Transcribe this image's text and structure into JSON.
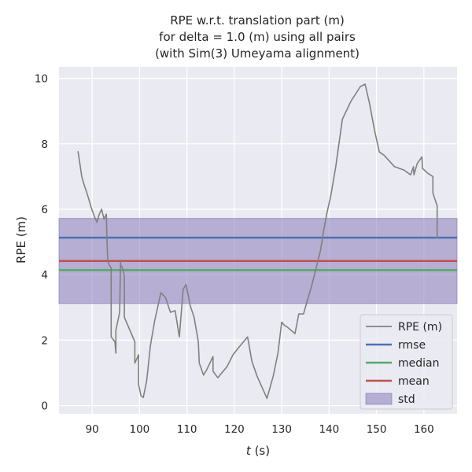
{
  "chart_data": {
    "type": "line",
    "title_lines": [
      "RPE w.r.t. translation part (m)",
      "for delta = 1.0 (m) using all pairs",
      "(with Sim(3) Umeyama alignment)"
    ],
    "xlabel_italic": "t",
    "xlabel_unit": " (s)",
    "ylabel": "RPE (m)",
    "xlim": [
      83,
      167
    ],
    "ylim": [
      -0.25,
      10.35
    ],
    "xticks": [
      90,
      100,
      110,
      120,
      130,
      140,
      150,
      160
    ],
    "xtick_labels": [
      "90",
      "100",
      "110",
      "120",
      "130",
      "140",
      "150",
      "160"
    ],
    "yticks": [
      0,
      2,
      4,
      6,
      8,
      10
    ],
    "ytick_labels": [
      "0",
      "2",
      "4",
      "6",
      "8",
      "10"
    ],
    "grid": true,
    "background": "#eaeaf2",
    "legend_position": "lower-right",
    "series": [
      {
        "name": "RPE (m)",
        "color": "#808080",
        "x": [
          87,
          87.3,
          87.8,
          88.3,
          89,
          89.8,
          90.4,
          91,
          91.5,
          92,
          92.5,
          93,
          93.1,
          93.3,
          94,
          94,
          94.8,
          95,
          95,
          95.8,
          96,
          96,
          96.4,
          96.8,
          96.8,
          99,
          99,
          99.8,
          99.8,
          100.3,
          100.8,
          101.5,
          102.3,
          103.2,
          104.5,
          105.5,
          106.5,
          107.5,
          108.4,
          109.2,
          109.8,
          110.7,
          110.7,
          111.5,
          112.4,
          112.6,
          113.5,
          114.2,
          115.5,
          115.5,
          116.5,
          118.5,
          119.7,
          120.5,
          122.8,
          123.7,
          124.8,
          126.9,
          128.2,
          129.2,
          130,
          130.6,
          131.2,
          132.8,
          133.6,
          134.6,
          134.8,
          135.3,
          136.2,
          137,
          137.6,
          138.2,
          138.8,
          139.5,
          140.4,
          141.4,
          142.8,
          144.6,
          146.6,
          147.6,
          148.5,
          149.6,
          150.6,
          151.6,
          153.8,
          155.8,
          157.2,
          157.8,
          157.9,
          158.6,
          159.6,
          159.7,
          160.8,
          161.9,
          161.9,
          162.8,
          162.8
        ],
        "y": [
          7.77,
          7.5,
          7.0,
          6.75,
          6.45,
          6.05,
          5.8,
          5.6,
          5.85,
          6.0,
          5.7,
          5.85,
          5.2,
          4.4,
          4.2,
          2.1,
          1.95,
          1.6,
          2.3,
          2.85,
          4.45,
          4.3,
          4.2,
          3.95,
          2.7,
          1.95,
          1.3,
          1.55,
          0.65,
          0.3,
          0.25,
          0.75,
          1.85,
          2.6,
          3.45,
          3.3,
          2.85,
          2.9,
          2.1,
          3.55,
          3.7,
          3.05,
          3.05,
          2.7,
          1.95,
          1.3,
          0.93,
          1.1,
          1.5,
          1.05,
          0.85,
          1.2,
          1.55,
          1.7,
          2.1,
          1.35,
          0.9,
          0.22,
          0.9,
          1.6,
          2.55,
          2.45,
          2.4,
          2.2,
          2.8,
          2.8,
          2.9,
          3.15,
          3.6,
          4.05,
          4.4,
          4.75,
          5.3,
          5.85,
          6.45,
          7.3,
          8.75,
          9.3,
          9.75,
          9.82,
          9.25,
          8.4,
          7.75,
          7.65,
          7.3,
          7.2,
          7.05,
          7.3,
          7.05,
          7.4,
          7.6,
          7.25,
          7.1,
          7.0,
          6.5,
          6.1,
          5.1
        ]
      }
    ],
    "hlines": [
      {
        "name": "rmse",
        "value": 5.13,
        "color": "#4c72b0"
      },
      {
        "name": "median",
        "value": 4.14,
        "color": "#55a868"
      },
      {
        "name": "mean",
        "value": 4.42,
        "color": "#c44e52"
      }
    ],
    "band": {
      "name": "std",
      "low": 3.12,
      "high": 5.72,
      "color": "#8172b3"
    },
    "legend": [
      {
        "label": "RPE (m)",
        "kind": "line",
        "color": "#808080"
      },
      {
        "label": "rmse",
        "kind": "line",
        "color": "#4c72b0"
      },
      {
        "label": "median",
        "kind": "line",
        "color": "#55a868"
      },
      {
        "label": "mean",
        "kind": "line",
        "color": "#c44e52"
      },
      {
        "label": "std",
        "kind": "patch",
        "color": "#8172b3"
      }
    ]
  }
}
